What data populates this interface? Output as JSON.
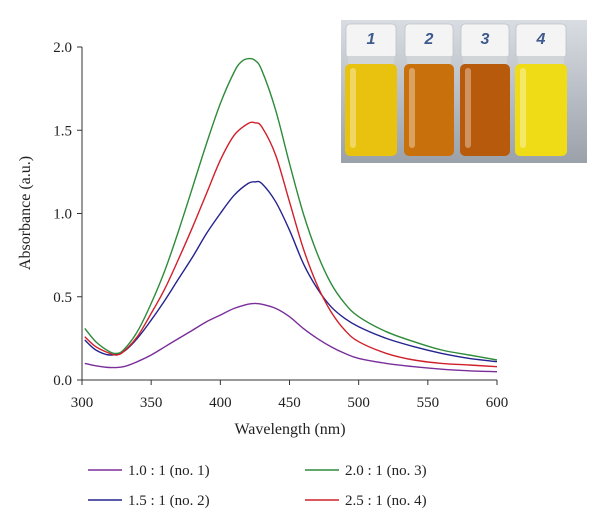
{
  "chart_data": {
    "type": "line",
    "xlabel": "Wavelength (nm)",
    "ylabel": "Absorbance (a.u.)",
    "xlim": [
      300,
      600
    ],
    "ylim": [
      0.0,
      2.0
    ],
    "xticks": [
      300,
      350,
      400,
      450,
      500,
      550,
      600
    ],
    "yticks": [
      0.0,
      0.5,
      1.0,
      1.5,
      2.0
    ],
    "ytick_labels": [
      "0.0",
      "0.5",
      "1.0",
      "1.5",
      "2.0"
    ],
    "grid": false,
    "legend_position": "bottom",
    "series": [
      {
        "name": "1.0 : 1 (no. 1)",
        "color": "#7a2e9a",
        "x": [
          302,
          310,
          320,
          330,
          340,
          350,
          360,
          370,
          380,
          390,
          400,
          410,
          420,
          425,
          430,
          440,
          450,
          460,
          470,
          480,
          490,
          500,
          520,
          540,
          560,
          580,
          600
        ],
        "y": [
          0.1,
          0.085,
          0.075,
          0.08,
          0.11,
          0.15,
          0.2,
          0.25,
          0.3,
          0.35,
          0.39,
          0.43,
          0.455,
          0.46,
          0.455,
          0.43,
          0.38,
          0.31,
          0.25,
          0.2,
          0.16,
          0.13,
          0.1,
          0.08,
          0.065,
          0.055,
          0.05
        ]
      },
      {
        "name": "1.5 : 1 (no. 2)",
        "color": "#24238f",
        "x": [
          302,
          310,
          320,
          330,
          340,
          350,
          360,
          370,
          380,
          390,
          400,
          410,
          420,
          425,
          430,
          440,
          450,
          460,
          470,
          480,
          490,
          500,
          520,
          540,
          560,
          580,
          600
        ],
        "y": [
          0.24,
          0.18,
          0.15,
          0.17,
          0.25,
          0.36,
          0.48,
          0.61,
          0.74,
          0.88,
          1.0,
          1.11,
          1.18,
          1.19,
          1.18,
          1.07,
          0.9,
          0.7,
          0.55,
          0.44,
          0.37,
          0.32,
          0.25,
          0.2,
          0.16,
          0.13,
          0.11
        ]
      },
      {
        "name": "2.0 : 1 (no. 3)",
        "color": "#2e8b3a",
        "x": [
          302,
          310,
          320,
          325,
          330,
          340,
          350,
          360,
          370,
          380,
          390,
          400,
          410,
          415,
          420,
          425,
          430,
          440,
          450,
          460,
          470,
          480,
          490,
          500,
          520,
          540,
          560,
          580,
          600
        ],
        "y": [
          0.31,
          0.23,
          0.17,
          0.16,
          0.18,
          0.29,
          0.46,
          0.66,
          0.9,
          1.16,
          1.42,
          1.66,
          1.85,
          1.91,
          1.93,
          1.92,
          1.86,
          1.62,
          1.3,
          1.0,
          0.76,
          0.58,
          0.46,
          0.38,
          0.29,
          0.23,
          0.18,
          0.15,
          0.12
        ]
      },
      {
        "name": "2.5 : 1 (no. 4)",
        "color": "#d0202a",
        "x": [
          302,
          310,
          320,
          325,
          330,
          340,
          350,
          360,
          370,
          380,
          390,
          400,
          410,
          420,
          425,
          430,
          440,
          450,
          460,
          470,
          480,
          490,
          500,
          520,
          540,
          560,
          580,
          600
        ],
        "y": [
          0.26,
          0.2,
          0.16,
          0.15,
          0.17,
          0.26,
          0.4,
          0.55,
          0.73,
          0.92,
          1.12,
          1.32,
          1.47,
          1.54,
          1.545,
          1.52,
          1.35,
          1.07,
          0.79,
          0.57,
          0.41,
          0.3,
          0.23,
          0.16,
          0.12,
          0.1,
          0.09,
          0.08
        ]
      }
    ]
  },
  "inset": {
    "vials": [
      {
        "label": "1",
        "color": "#e8c20e"
      },
      {
        "label": "2",
        "color": "#c8700c"
      },
      {
        "label": "3",
        "color": "#b75a0c"
      },
      {
        "label": "4",
        "color": "#f0dc16"
      }
    ]
  }
}
